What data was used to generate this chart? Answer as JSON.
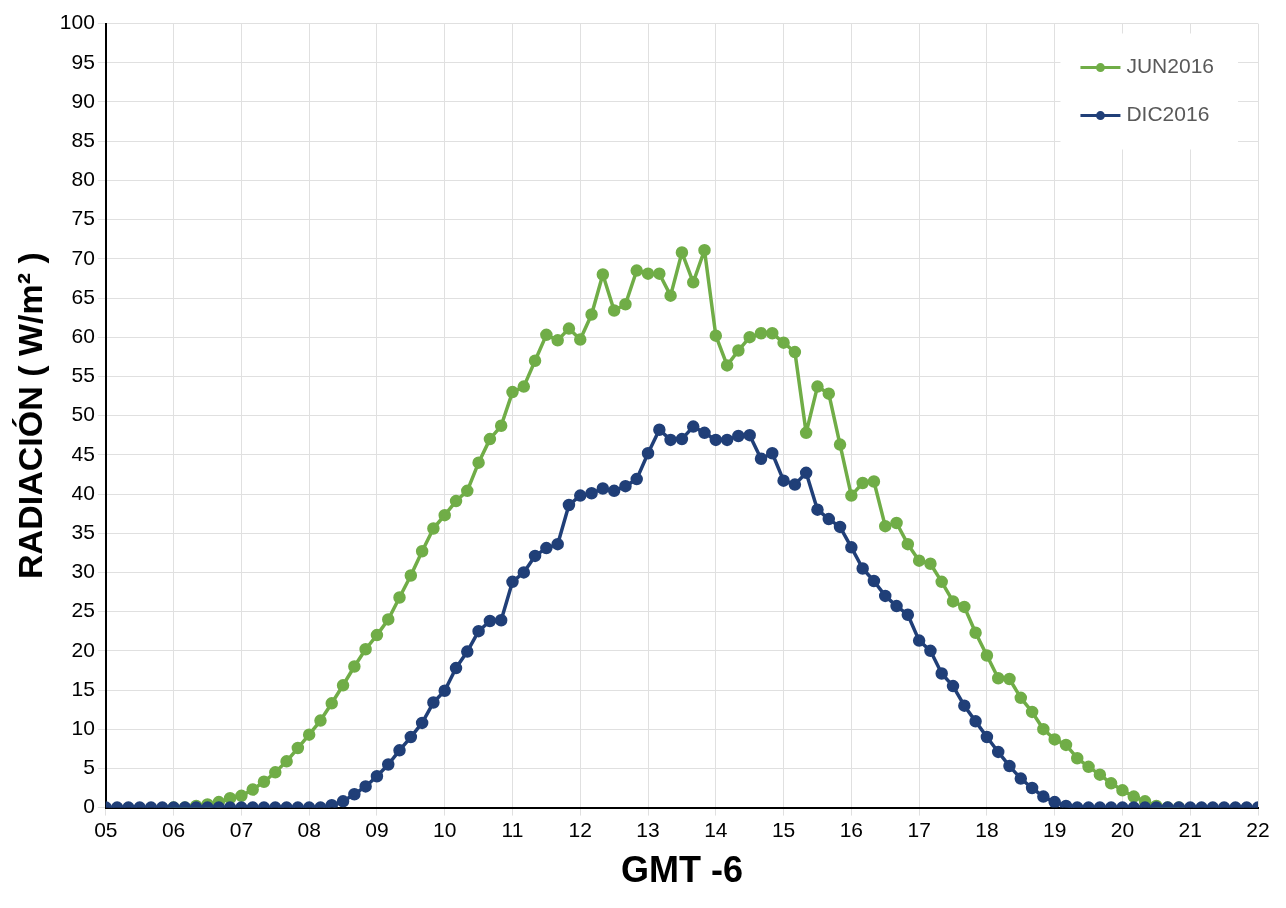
{
  "chart_data": {
    "type": "line",
    "xlabel": "GMT -6",
    "ylabel": "RADIACIÓN ( W/m² )",
    "x": [
      5,
      5.167,
      5.333,
      5.5,
      5.667,
      5.833,
      6,
      6.167,
      6.333,
      6.5,
      6.667,
      6.833,
      7,
      7.167,
      7.333,
      7.5,
      7.667,
      7.833,
      8,
      8.167,
      8.333,
      8.5,
      8.667,
      8.833,
      9,
      9.167,
      9.333,
      9.5,
      9.667,
      9.833,
      10,
      10.167,
      10.333,
      10.5,
      10.667,
      10.833,
      11,
      11.167,
      11.333,
      11.5,
      11.667,
      11.833,
      12,
      12.167,
      12.333,
      12.5,
      12.667,
      12.833,
      13,
      13.167,
      13.333,
      13.5,
      13.667,
      13.833,
      14,
      14.167,
      14.333,
      14.5,
      14.667,
      14.833,
      15,
      15.167,
      15.333,
      15.5,
      15.667,
      15.833,
      16,
      16.167,
      16.333,
      16.5,
      16.667,
      16.833,
      17,
      17.167,
      17.333,
      17.5,
      17.667,
      17.833,
      18,
      18.167,
      18.333,
      18.5,
      18.667,
      18.833,
      19,
      19.167,
      19.333,
      19.5,
      19.667,
      19.833,
      20,
      20.167,
      20.333,
      20.5,
      20.667,
      20.833,
      21,
      21.167,
      21.333,
      21.5,
      21.667,
      21.833,
      22
    ],
    "series": [
      {
        "name": "JUN2016",
        "color": "#70ad47",
        "values": [
          null,
          null,
          null,
          null,
          null,
          null,
          0,
          0,
          0.2,
          0.4,
          0.7,
          1.2,
          1.5,
          2.3,
          3.3,
          4.5,
          5.9,
          7.6,
          9.3,
          11.1,
          13.3,
          15.6,
          18.0,
          20.2,
          22.0,
          24.0,
          26.8,
          29.6,
          32.7,
          35.6,
          37.3,
          39.1,
          40.4,
          44.0,
          47.0,
          48.7,
          53.0,
          53.7,
          57.0,
          60.3,
          59.6,
          61.1,
          59.7,
          62.9,
          68.0,
          63.4,
          64.2,
          68.5,
          68.1,
          68.1,
          65.3,
          70.8,
          67.0,
          71.1,
          60.2,
          56.4,
          58.3,
          60.0,
          60.5,
          60.5,
          59.3,
          58.1,
          47.8,
          53.7,
          52.8,
          46.3,
          39.8,
          41.4,
          41.6,
          35.9,
          36.3,
          33.6,
          31.5,
          31.1,
          28.8,
          26.3,
          25.6,
          22.3,
          19.4,
          16.5,
          16.4,
          14.0,
          12.2,
          10.0,
          8.7,
          8.0,
          6.3,
          5.2,
          4.2,
          3.1,
          2.2,
          1.4,
          0.8,
          0.2,
          0,
          0,
          null,
          null,
          null,
          null,
          null,
          null,
          null
        ]
      },
      {
        "name": "DIC2016",
        "color": "#203f78",
        "values": [
          0,
          0,
          0,
          0,
          0,
          0,
          0,
          0,
          0,
          0,
          0,
          0,
          0,
          0,
          0,
          0,
          0,
          0,
          0,
          0,
          0.3,
          0.8,
          1.7,
          2.7,
          4.0,
          5.5,
          7.3,
          9.0,
          10.8,
          13.4,
          14.9,
          17.8,
          19.9,
          22.5,
          23.8,
          23.9,
          28.8,
          30.0,
          32.1,
          33.1,
          33.6,
          38.6,
          39.8,
          40.1,
          40.7,
          40.4,
          41.0,
          41.9,
          45.2,
          48.2,
          46.9,
          47.0,
          48.6,
          47.8,
          46.9,
          46.9,
          47.4,
          47.5,
          44.5,
          45.2,
          41.7,
          41.2,
          42.7,
          38.0,
          36.8,
          35.8,
          33.2,
          30.5,
          28.9,
          27.0,
          25.7,
          24.6,
          21.3,
          20.0,
          17.1,
          15.5,
          13.0,
          11.0,
          9.0,
          7.1,
          5.3,
          3.7,
          2.5,
          1.4,
          0.7,
          0.2,
          0,
          0,
          0,
          0,
          0,
          0,
          0,
          0,
          0,
          0,
          0,
          0,
          0,
          0,
          0,
          0,
          0
        ]
      }
    ],
    "xlim": [
      5,
      22
    ],
    "xticks": [
      {
        "value": 5,
        "label": "05"
      },
      {
        "value": 6,
        "label": "06"
      },
      {
        "value": 7,
        "label": "07"
      },
      {
        "value": 8,
        "label": "08"
      },
      {
        "value": 9,
        "label": "09"
      },
      10,
      11,
      12,
      13,
      14,
      15,
      16,
      17,
      18,
      19,
      20,
      21,
      22
    ],
    "ylim": [
      0,
      100
    ],
    "yticks": [
      0,
      5,
      10,
      15,
      20,
      25,
      30,
      35,
      40,
      45,
      50,
      55,
      60,
      65,
      70,
      75,
      80,
      85,
      90,
      95,
      100
    ],
    "grid": true,
    "legend": "top right",
    "marker": "circle",
    "line_style": "solid"
  }
}
